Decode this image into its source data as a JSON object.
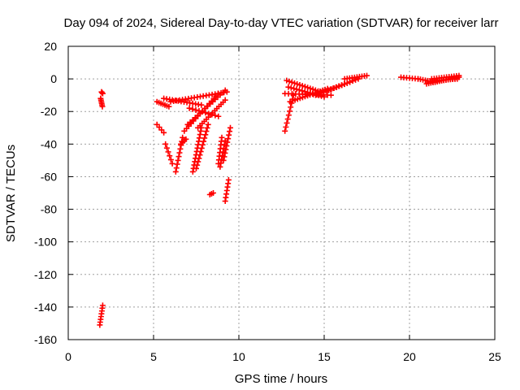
{
  "chart_data": {
    "type": "scatter",
    "title": "Day 094 of 2024, Sidereal Day-to-day VTEC variation (SDTVAR) for receiver larr",
    "xlabel": "GPS time / hours",
    "ylabel": "SDTVAR / TECUs",
    "xlim": [
      0,
      25
    ],
    "ylim": [
      -160,
      20
    ],
    "xticks": [
      0,
      5,
      10,
      15,
      20,
      25
    ],
    "yticks": [
      20,
      0,
      -20,
      -40,
      -60,
      -80,
      -100,
      -120,
      -140,
      -160
    ],
    "xtick_labels": [
      "0",
      "5",
      "10",
      "15",
      "20",
      "25"
    ],
    "ytick_labels": [
      "20",
      "0",
      "-20",
      "-40",
      "-60",
      "-80",
      "-100",
      "-120",
      "-140",
      "-160"
    ],
    "grid": true,
    "marker": "+",
    "color": "#ff0000",
    "segments": [
      {
        "x0": 1.95,
        "y0": -8,
        "x1": 2.02,
        "y1": -9,
        "n": 3
      },
      {
        "x0": 1.9,
        "y0": -12,
        "x1": 2.0,
        "y1": -17,
        "n": 6
      },
      {
        "x0": 1.85,
        "y0": -151,
        "x1": 2.02,
        "y1": -139,
        "n": 8
      },
      {
        "x0": 5.2,
        "y0": -28,
        "x1": 5.6,
        "y1": -33,
        "n": 4
      },
      {
        "x0": 5.7,
        "y0": -40,
        "x1": 6.1,
        "y1": -52,
        "n": 6
      },
      {
        "x0": 5.2,
        "y0": -14,
        "x1": 5.9,
        "y1": -17,
        "n": 7
      },
      {
        "x0": 5.6,
        "y0": -12,
        "x1": 7.8,
        "y1": -16,
        "n": 14
      },
      {
        "x0": 6.0,
        "y0": -14,
        "x1": 9.3,
        "y1": -8,
        "n": 20
      },
      {
        "x0": 6.3,
        "y0": -57,
        "x1": 6.7,
        "y1": -36,
        "n": 10
      },
      {
        "x0": 6.6,
        "y0": -40,
        "x1": 6.9,
        "y1": -37,
        "n": 4
      },
      {
        "x0": 6.8,
        "y0": -32,
        "x1": 8.8,
        "y1": -9,
        "n": 16
      },
      {
        "x0": 7.0,
        "y0": -28,
        "x1": 9.2,
        "y1": -7,
        "n": 16
      },
      {
        "x0": 7.1,
        "y0": -18,
        "x1": 8.8,
        "y1": -23,
        "n": 10
      },
      {
        "x0": 7.3,
        "y0": -57,
        "x1": 7.8,
        "y1": -30,
        "n": 14
      },
      {
        "x0": 7.5,
        "y0": -55,
        "x1": 8.2,
        "y1": -28,
        "n": 14
      },
      {
        "x0": 7.6,
        "y0": -30,
        "x1": 9.2,
        "y1": -13,
        "n": 14
      },
      {
        "x0": 8.3,
        "y0": -71,
        "x1": 8.5,
        "y1": -70,
        "n": 3
      },
      {
        "x0": 8.8,
        "y0": -52,
        "x1": 9.0,
        "y1": -36,
        "n": 8
      },
      {
        "x0": 8.9,
        "y0": -54,
        "x1": 9.2,
        "y1": -38,
        "n": 8
      },
      {
        "x0": 9.1,
        "y0": -50,
        "x1": 9.5,
        "y1": -30,
        "n": 10
      },
      {
        "x0": 9.2,
        "y0": -75,
        "x1": 9.4,
        "y1": -62,
        "n": 7
      },
      {
        "x0": 12.7,
        "y0": -32,
        "x1": 13.2,
        "y1": -10,
        "n": 10
      },
      {
        "x0": 13.0,
        "y0": -14,
        "x1": 15.2,
        "y1": -6,
        "n": 16
      },
      {
        "x0": 12.8,
        "y0": -1,
        "x1": 14.8,
        "y1": -8,
        "n": 14
      },
      {
        "x0": 12.9,
        "y0": -5,
        "x1": 15.0,
        "y1": -11,
        "n": 14
      },
      {
        "x0": 12.7,
        "y0": -9,
        "x1": 15.4,
        "y1": -10,
        "n": 14
      },
      {
        "x0": 14.5,
        "y0": -10,
        "x1": 16.5,
        "y1": -2,
        "n": 14
      },
      {
        "x0": 15.2,
        "y0": -7,
        "x1": 17.0,
        "y1": 0,
        "n": 12
      },
      {
        "x0": 16.2,
        "y0": 0,
        "x1": 17.5,
        "y1": 2,
        "n": 10
      },
      {
        "x0": 19.5,
        "y0": 1,
        "x1": 20.5,
        "y1": 0,
        "n": 7
      },
      {
        "x0": 20.5,
        "y0": 0,
        "x1": 21.5,
        "y1": -2,
        "n": 8
      },
      {
        "x0": 21.0,
        "y0": -3,
        "x1": 22.9,
        "y1": 1,
        "n": 16
      },
      {
        "x0": 21.3,
        "y0": 0,
        "x1": 22.9,
        "y1": 2,
        "n": 12
      },
      {
        "x0": 21.6,
        "y0": -1,
        "x1": 22.8,
        "y1": 0,
        "n": 10
      }
    ]
  }
}
